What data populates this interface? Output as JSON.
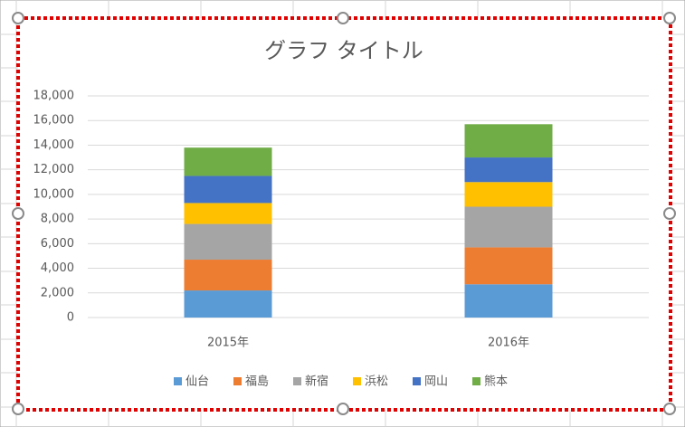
{
  "chart_data": {
    "type": "stacked_bar",
    "title": "グラフ タイトル",
    "categories": [
      "2015年",
      "2016年"
    ],
    "series": [
      {
        "name": "仙台",
        "color": "#5b9bd5",
        "values": [
          2200,
          2700
        ]
      },
      {
        "name": "福島",
        "color": "#ed7d31",
        "values": [
          2500,
          3000
        ]
      },
      {
        "name": "新宿",
        "color": "#a5a5a5",
        "values": [
          2900,
          3300
        ]
      },
      {
        "name": "浜松",
        "color": "#ffc000",
        "values": [
          1700,
          2000
        ]
      },
      {
        "name": "岡山",
        "color": "#4472c4",
        "values": [
          2200,
          2000
        ]
      },
      {
        "name": "熊本",
        "color": "#70ad47",
        "values": [
          2300,
          2700
        ]
      }
    ],
    "ylim": [
      0,
      18000
    ],
    "yticks": [
      0,
      {
        "value": 2000,
        "label": "2,000"
      },
      {
        "value": 4000,
        "label": "4,000"
      },
      {
        "value": 6000,
        "label": "6,000"
      },
      {
        "value": 8000,
        "label": "8,000"
      },
      {
        "value": 10000,
        "label": "10,000"
      },
      {
        "value": 12000,
        "label": "12,000"
      },
      {
        "value": 14000,
        "label": "14,000"
      },
      {
        "value": 16000,
        "label": "16,000"
      },
      {
        "value": 18000,
        "label": "18,000"
      }
    ],
    "grid": true,
    "legend": "bottom"
  }
}
